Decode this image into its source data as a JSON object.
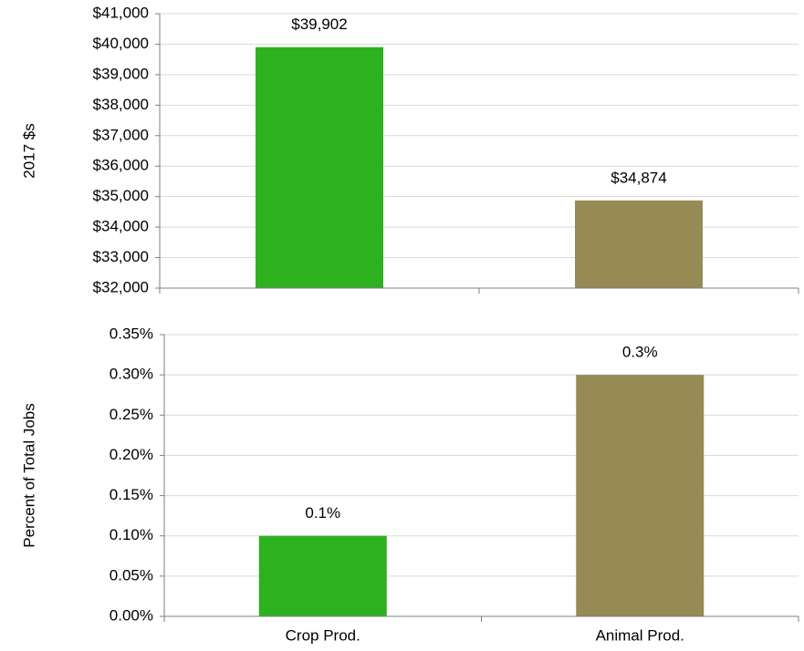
{
  "chart_data": [
    {
      "type": "bar",
      "ylabel": "2017 $s",
      "values": [
        39902,
        34874
      ],
      "value_labels": [
        "$39,902",
        "$34,874"
      ],
      "colors": [
        "#2db11e",
        "#968a55"
      ],
      "ylim": [
        32000,
        41000
      ],
      "yticks": [
        {
          "value": 32000,
          "label": "$32,000"
        },
        {
          "value": 33000,
          "label": "$33,000"
        },
        {
          "value": 34000,
          "label": "$34,000"
        },
        {
          "value": 35000,
          "label": "$35,000"
        },
        {
          "value": 36000,
          "label": "$36,000"
        },
        {
          "value": 37000,
          "label": "$37,000"
        },
        {
          "value": 38000,
          "label": "$38,000"
        },
        {
          "value": 39000,
          "label": "$39,000"
        },
        {
          "value": 40000,
          "label": "$40,000"
        },
        {
          "value": 41000,
          "label": "$41,000"
        }
      ],
      "grid": true
    },
    {
      "type": "bar",
      "ylabel": "Percent of Total Jobs",
      "categories": [
        "Crop Prod.",
        "Animal Prod."
      ],
      "values": [
        0.1,
        0.3
      ],
      "value_labels": [
        "0.1%",
        "0.3%"
      ],
      "colors": [
        "#2db11e",
        "#968a55"
      ],
      "ylim": [
        0,
        0.35
      ],
      "yticks": [
        {
          "value": 0,
          "label": "0.00%"
        },
        {
          "value": 0.05,
          "label": "0.05%"
        },
        {
          "value": 0.1,
          "label": "0.10%"
        },
        {
          "value": 0.15,
          "label": "0.15%"
        },
        {
          "value": 0.2,
          "label": "0.20%"
        },
        {
          "value": 0.25,
          "label": "0.25%"
        },
        {
          "value": 0.3,
          "label": "0.30%"
        },
        {
          "value": 0.35,
          "label": "0.35%"
        }
      ],
      "grid": true
    }
  ]
}
